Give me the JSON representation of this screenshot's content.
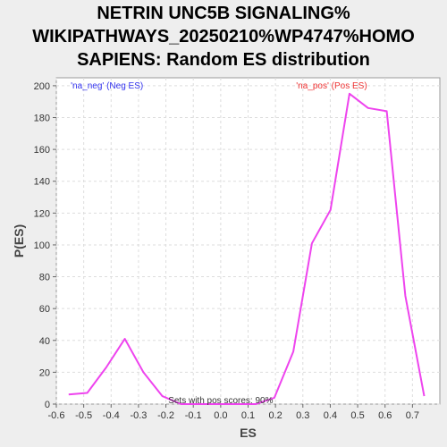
{
  "chart_data": {
    "type": "line",
    "title_lines": [
      "NETRIN UNC5B SIGNALING%",
      "WIKIPATHWAYS_20250210%WP4747%HOMO",
      "SAPIENS: Random ES distribution"
    ],
    "xlabel": "ES",
    "ylabel": "P(ES)",
    "xlim": [
      -0.6,
      0.8
    ],
    "ylim": [
      0,
      205
    ],
    "xticks": [
      -0.6,
      -0.5,
      -0.4,
      -0.3,
      -0.2,
      -0.1,
      0.0,
      0.1,
      0.2,
      0.3,
      0.4,
      0.5,
      0.6,
      0.7
    ],
    "xtick_labels": [
      "-0.6",
      "-0.5",
      "-0.4",
      "-0.3",
      "-0.2",
      "-0.1",
      "0.0",
      "0.1",
      "0.2",
      "0.3",
      "0.4",
      "0.5",
      "0.6",
      "0.7"
    ],
    "yticks": [
      0,
      20,
      40,
      60,
      80,
      100,
      120,
      140,
      160,
      180,
      200
    ],
    "ytick_labels": [
      "0",
      "20",
      "40",
      "60",
      "80",
      "100",
      "120",
      "140",
      "160",
      "180",
      "200"
    ],
    "grid": true,
    "series": [
      {
        "color": "#ee44ee",
        "x": [
          -0.555,
          -0.487,
          -0.418,
          -0.35,
          -0.282,
          -0.213,
          -0.145,
          -0.077,
          -0.008,
          0.06,
          0.128,
          0.196,
          0.265,
          0.333,
          0.401,
          0.47,
          0.538,
          0.606,
          0.674,
          0.743
        ],
        "y": [
          6,
          7,
          23,
          41,
          20,
          5,
          0,
          0,
          0,
          0,
          0,
          4,
          33,
          101,
          122,
          195,
          186,
          184,
          68,
          5
        ]
      }
    ],
    "annotations": {
      "neg_label": "'na_neg' (Neg ES)",
      "pos_label": "'na_pos' (Pos ES)",
      "pos_scores": "Sets with pos scores: 90%"
    },
    "colors": {
      "neg": "#3333ee",
      "pos": "#ee3333",
      "line": "#ee44ee"
    }
  }
}
